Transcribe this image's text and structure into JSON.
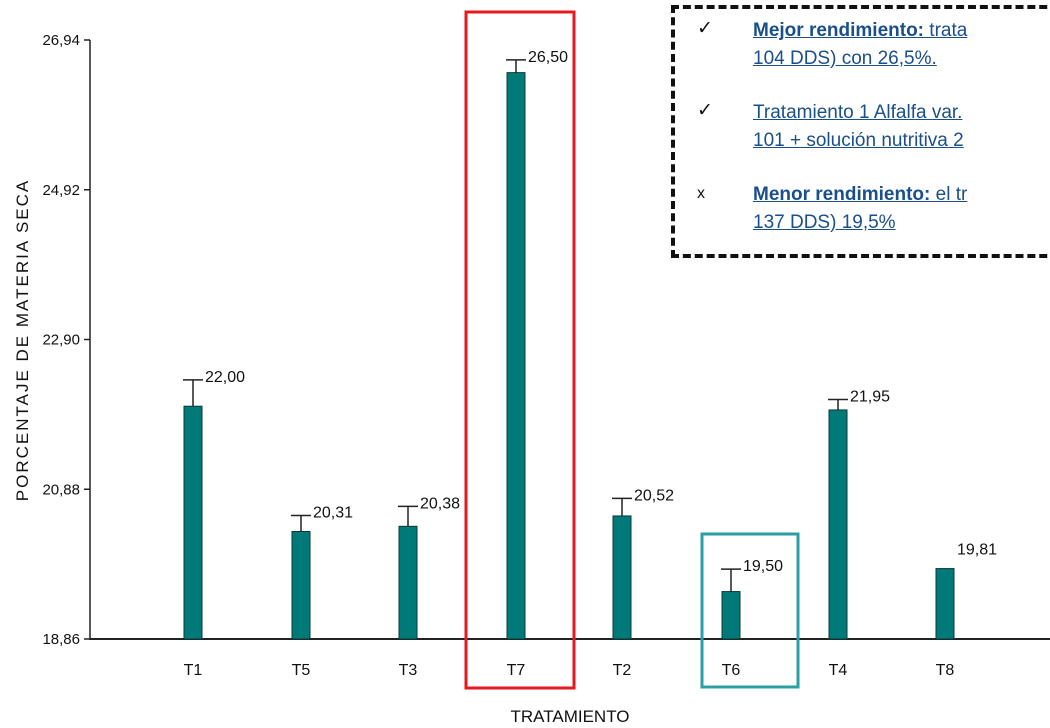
{
  "chart_data": {
    "type": "bar",
    "ylabel": "PORCENTAJE DE MATERIA SECA",
    "xlabel": "TRATAMIENTO",
    "ylim": [
      18.86,
      26.94
    ],
    "yticks": [
      "18,86",
      "20,88",
      "22,90",
      "24,92",
      "26,94"
    ],
    "ytick_values": [
      18.86,
      20.88,
      22.9,
      24.92,
      26.94
    ],
    "categories": [
      "T1",
      "T5",
      "T3",
      "T7",
      "T2",
      "T6",
      "T4",
      "T8"
    ],
    "values": [
      22.0,
      20.31,
      20.38,
      26.5,
      20.52,
      19.5,
      21.95,
      19.81
    ],
    "data_labels": [
      "22,00",
      "20,31",
      "20,38",
      "26,50",
      "20,52",
      "19,50",
      "21,95",
      "19,81"
    ],
    "bar_color": "#007a78",
    "highlights": [
      {
        "category": "T7",
        "color": "#e8191e"
      },
      {
        "category": "T6",
        "color": "#2aa0a3"
      }
    ]
  },
  "notes": [
    {
      "mark": "✓",
      "bold": "Mejor rendimiento:",
      "text1": " trata",
      "text2": "104 DDS) con 26,5%."
    },
    {
      "mark": "✓",
      "bold": "",
      "text1": "Tratamiento 1 Alfalfa var.",
      "text2": "101 + solución nutritiva 2"
    },
    {
      "mark": "x",
      "bold": "Menor rendimiento:",
      "text1": " el tr",
      "text2": "137 DDS) 19,5%"
    }
  ]
}
